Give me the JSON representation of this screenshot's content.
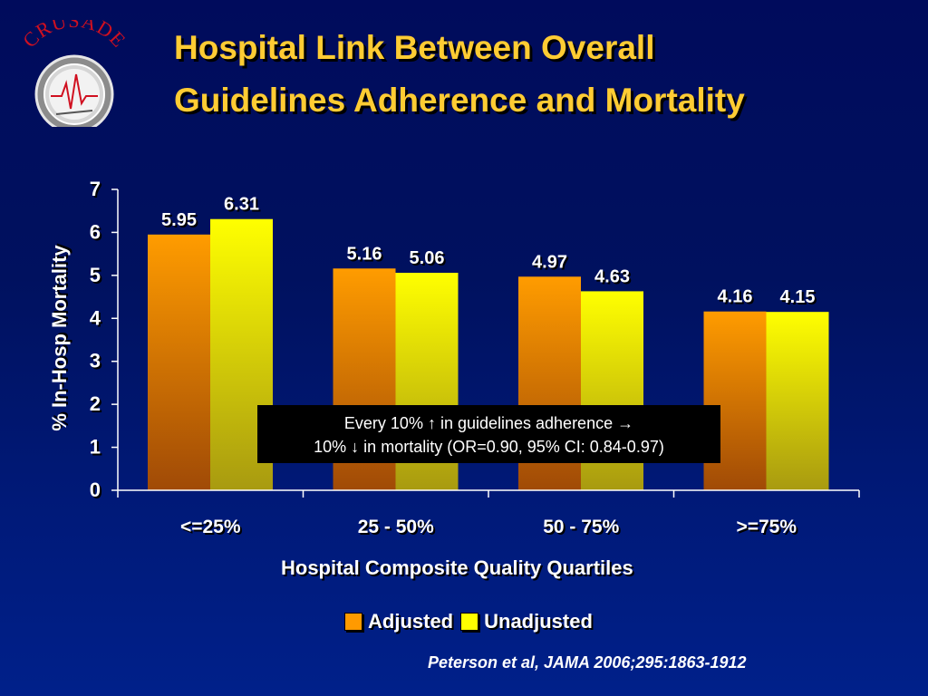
{
  "slide": {
    "title_line1": "Hospital Link Between Overall",
    "title_line2": "Guidelines Adherence and Mortality",
    "logo_text": "CRUSADE",
    "annotation_line1": "Every 10% ↑ in guidelines adherence →",
    "annotation_line2": "10% ↓ in mortality (OR=0.90, 95% CI: 0.84-0.97)",
    "citation": "Peterson et al, JAMA 2006;295:1863-1912"
  },
  "chart_data": {
    "type": "bar",
    "categories": [
      "<=25%",
      "25 - 50%",
      "50 - 75%",
      ">=75%"
    ],
    "series": [
      {
        "name": "Adjusted",
        "values": [
          5.95,
          5.16,
          4.97,
          4.16
        ],
        "labels": [
          "5.95",
          "5.16",
          "4.97",
          "4.16"
        ],
        "color": "#ff9a00"
      },
      {
        "name": "Unadjusted",
        "values": [
          6.31,
          5.06,
          4.63,
          4.15
        ],
        "labels": [
          "6.31",
          "5.06",
          "4.63",
          "4.15"
        ],
        "color": "#ffff00"
      }
    ],
    "xlabel": "Hospital Composite Quality Quartiles",
    "ylabel": "% In-Hosp Mortality",
    "ylim": [
      0,
      7
    ],
    "yticks": [
      0,
      1,
      2,
      3,
      4,
      5,
      6,
      7
    ],
    "grid": false,
    "legend_position": "bottom"
  }
}
